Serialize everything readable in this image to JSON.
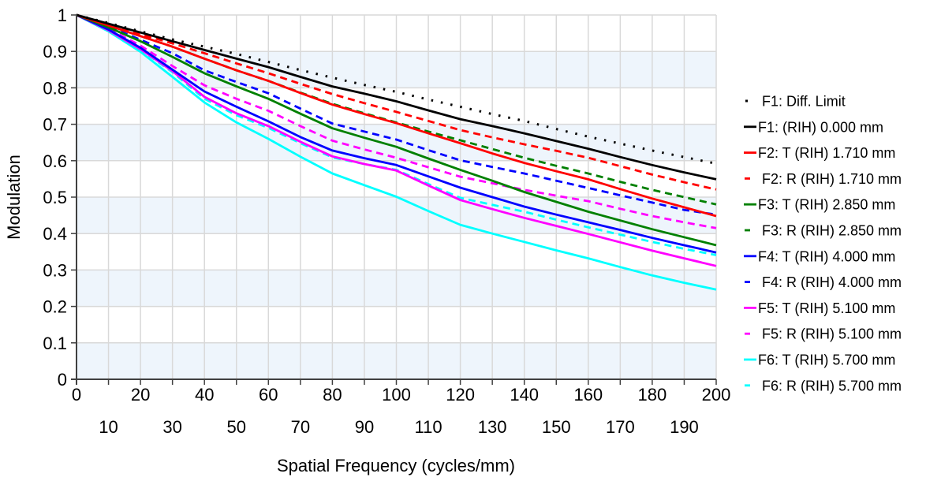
{
  "chart_data": {
    "type": "line",
    "title": "",
    "xlabel": "Spatial Frequency (cycles/mm)",
    "ylabel": "Modulation",
    "xlim": [
      0,
      200
    ],
    "ylim": [
      0,
      1
    ],
    "xticks": [
      0,
      10,
      20,
      30,
      40,
      50,
      60,
      70,
      80,
      90,
      100,
      110,
      120,
      130,
      140,
      150,
      160,
      170,
      180,
      190,
      200
    ],
    "xtick_labels": [
      "0",
      "10",
      "20",
      "30",
      "40",
      "50",
      "60",
      "70",
      "80",
      "90",
      "100",
      "110",
      "120",
      "130",
      "140",
      "150",
      "160",
      "170",
      "180",
      "190",
      "200"
    ],
    "yticks": [
      0,
      0.1,
      0.2,
      0.3,
      0.4,
      0.5,
      0.6,
      0.7,
      0.8,
      0.9,
      1
    ],
    "ytick_labels": [
      "0",
      "0.1",
      "0.2",
      "0.3",
      "0.4",
      "0.5",
      "0.6",
      "0.7",
      "0.8",
      "0.9",
      "1"
    ],
    "grid": true,
    "banded_background": true,
    "legend_position": "right",
    "x": [
      0,
      10,
      20,
      30,
      40,
      50,
      60,
      70,
      80,
      90,
      100,
      110,
      120,
      130,
      140,
      150,
      160,
      170,
      180,
      190,
      200
    ],
    "series": [
      {
        "name": "F1: Diff. Limit",
        "color": "#000000",
        "style": "dotted",
        "values": [
          1,
          0.978,
          0.955,
          0.933,
          0.913,
          0.893,
          0.871,
          0.849,
          0.828,
          0.808,
          0.789,
          0.768,
          0.748,
          0.728,
          0.709,
          0.687,
          0.666,
          0.647,
          0.628,
          0.61,
          0.592
        ]
      },
      {
        "name": "F1: (RIH) 0.000 mm",
        "color": "#000000",
        "style": "solid",
        "values": [
          1,
          0.976,
          0.952,
          0.928,
          0.904,
          0.88,
          0.857,
          0.83,
          0.804,
          0.784,
          0.763,
          0.738,
          0.714,
          0.695,
          0.675,
          0.654,
          0.633,
          0.61,
          0.588,
          0.568,
          0.549
        ]
      },
      {
        "name": "F2: T (RIH) 1.710 mm",
        "color": "#ff0000",
        "style": "solid",
        "values": [
          1,
          0.971,
          0.942,
          0.913,
          0.88,
          0.848,
          0.819,
          0.786,
          0.754,
          0.728,
          0.703,
          0.675,
          0.648,
          0.62,
          0.594,
          0.571,
          0.549,
          0.522,
          0.496,
          0.472,
          0.448
        ]
      },
      {
        "name": "F2: R (RIH) 1.710 mm",
        "color": "#ff0000",
        "style": "dashed",
        "values": [
          1,
          0.973,
          0.947,
          0.922,
          0.895,
          0.867,
          0.84,
          0.811,
          0.783,
          0.758,
          0.734,
          0.709,
          0.684,
          0.664,
          0.645,
          0.627,
          0.608,
          0.585,
          0.562,
          0.541,
          0.521
        ]
      },
      {
        "name": "F3: T (RIH) 2.850 mm",
        "color": "#008000",
        "style": "solid",
        "values": [
          1,
          0.966,
          0.928,
          0.885,
          0.84,
          0.804,
          0.77,
          0.729,
          0.689,
          0.663,
          0.638,
          0.606,
          0.575,
          0.545,
          0.514,
          0.487,
          0.46,
          0.436,
          0.412,
          0.39,
          0.368
        ]
      },
      {
        "name": "F3: R (RIH) 2.850 mm",
        "color": "#008000",
        "style": "dashed",
        "values": [
          1,
          0.971,
          0.942,
          0.913,
          0.88,
          0.848,
          0.819,
          0.787,
          0.756,
          0.73,
          0.705,
          0.68,
          0.656,
          0.632,
          0.608,
          0.586,
          0.565,
          0.542,
          0.52,
          0.5,
          0.48
        ]
      },
      {
        "name": "F4: T (RIH) 4.000 mm",
        "color": "#0000ff",
        "style": "solid",
        "values": [
          1,
          0.96,
          0.91,
          0.85,
          0.79,
          0.748,
          0.708,
          0.665,
          0.628,
          0.607,
          0.588,
          0.557,
          0.526,
          0.5,
          0.474,
          0.452,
          0.431,
          0.41,
          0.388,
          0.368,
          0.348
        ]
      },
      {
        "name": "F4: R (RIH) 4.000 mm",
        "color": "#0000ff",
        "style": "dashed",
        "values": [
          1,
          0.968,
          0.932,
          0.895,
          0.848,
          0.816,
          0.785,
          0.743,
          0.702,
          0.68,
          0.658,
          0.629,
          0.601,
          0.583,
          0.565,
          0.545,
          0.525,
          0.505,
          0.485,
          0.465,
          0.452
        ]
      },
      {
        "name": "F5: T (RIH) 5.100 mm",
        "color": "#ff00ff",
        "style": "solid",
        "values": [
          1,
          0.958,
          0.906,
          0.846,
          0.775,
          0.73,
          0.695,
          0.652,
          0.612,
          0.591,
          0.573,
          0.532,
          0.492,
          0.467,
          0.443,
          0.421,
          0.399,
          0.376,
          0.353,
          0.332,
          0.311
        ]
      },
      {
        "name": "F5: R (RIH) 5.100 mm",
        "color": "#ff00ff",
        "style": "dashed",
        "values": [
          1,
          0.962,
          0.916,
          0.86,
          0.807,
          0.77,
          0.737,
          0.695,
          0.655,
          0.631,
          0.608,
          0.582,
          0.556,
          0.538,
          0.52,
          0.504,
          0.489,
          0.468,
          0.448,
          0.431,
          0.415
        ]
      },
      {
        "name": "F6: T (RIH) 5.700 mm",
        "color": "#00ffff",
        "style": "solid",
        "values": [
          1,
          0.955,
          0.899,
          0.83,
          0.76,
          0.705,
          0.66,
          0.611,
          0.565,
          0.533,
          0.501,
          0.462,
          0.424,
          0.4,
          0.377,
          0.354,
          0.332,
          0.308,
          0.285,
          0.265,
          0.246
        ]
      },
      {
        "name": "F6: R (RIH) 5.700 mm",
        "color": "#00ffff",
        "style": "dashed",
        "values": [
          1,
          0.957,
          0.905,
          0.843,
          0.77,
          0.725,
          0.69,
          0.648,
          0.609,
          0.591,
          0.575,
          0.536,
          0.498,
          0.479,
          0.46,
          0.438,
          0.417,
          0.397,
          0.377,
          0.358,
          0.341
        ]
      }
    ],
    "colors": {
      "band": "#eef5fc",
      "grid": "#d9d9d9",
      "axis": "#404040"
    }
  }
}
